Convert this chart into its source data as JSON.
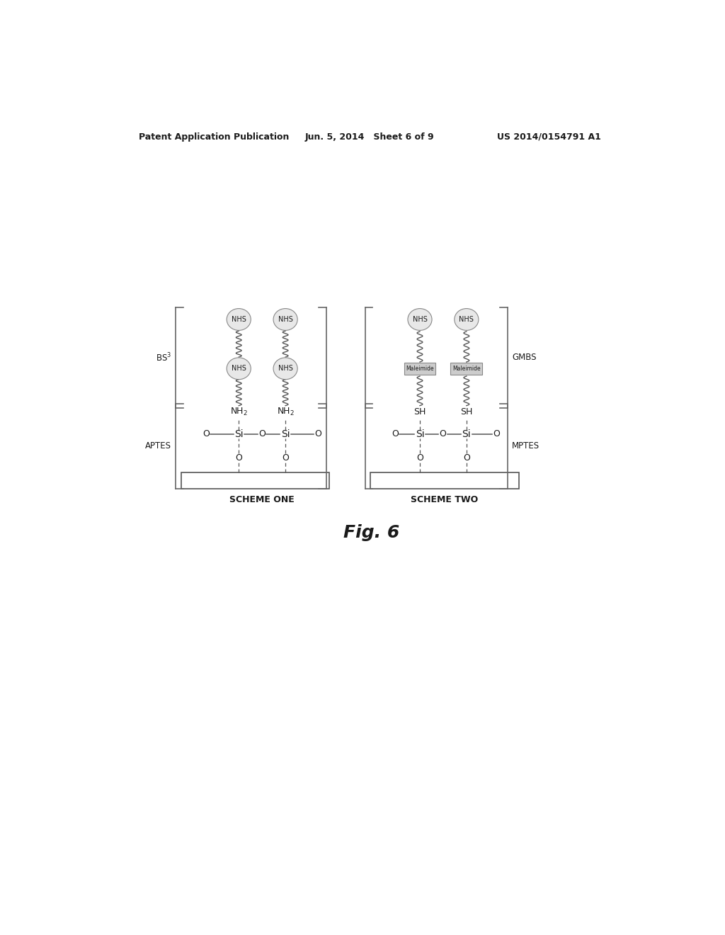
{
  "bg_color": "#ffffff",
  "header_left": "Patent Application Publication",
  "header_mid": "Jun. 5, 2014   Sheet 6 of 9",
  "header_right": "US 2014/0154791 A1",
  "fig_label": "Fig. 6",
  "scheme_one_label": "SCHEME ONE",
  "scheme_two_label": "SCHEME TWO",
  "bs3_label": "BS³",
  "aptes_label": "APTES",
  "gmbs_label": "GMBS",
  "mptes_label": "MPTES",
  "text_color": "#1a1a1a",
  "line_color": "#555555",
  "ellipse_fill": "#e8e8e8",
  "ellipse_edge": "#888888",
  "rect_fill": "#cccccc",
  "rect_edge": "#888888",
  "bracket_color": "#666666"
}
